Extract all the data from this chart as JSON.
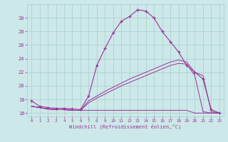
{
  "xlabel": "Windchill (Refroidissement éolien,°C)",
  "bg_color": "#cce8e8",
  "line_color": "#993399",
  "grid_color": "#aacccc",
  "xlim": [
    -0.5,
    23.5
  ],
  "ylim": [
    15.5,
    32.0
  ],
  "xticks": [
    0,
    1,
    2,
    3,
    4,
    5,
    6,
    7,
    8,
    9,
    10,
    11,
    12,
    13,
    14,
    15,
    16,
    17,
    18,
    19,
    20,
    21,
    22,
    23
  ],
  "yticks": [
    16,
    18,
    20,
    22,
    24,
    26,
    28,
    30
  ],
  "line1_x": [
    0,
    1,
    2,
    3,
    4,
    5,
    6,
    7,
    8,
    9,
    10,
    11,
    12,
    13,
    14,
    15,
    16,
    17,
    18,
    19,
    20,
    21,
    22,
    23
  ],
  "line1_y": [
    17.8,
    17.0,
    16.8,
    16.7,
    16.7,
    16.6,
    16.5,
    18.5,
    23.0,
    25.5,
    27.8,
    29.5,
    30.2,
    31.2,
    31.0,
    30.0,
    28.0,
    26.5,
    25.0,
    23.0,
    22.0,
    21.0,
    16.5,
    16.0
  ],
  "line2_x": [
    0,
    1,
    2,
    3,
    4,
    5,
    6,
    7,
    8,
    9,
    10,
    11,
    12,
    13,
    14,
    15,
    16,
    17,
    18,
    19,
    20,
    21,
    22,
    23
  ],
  "line2_y": [
    17.0,
    16.8,
    16.6,
    16.5,
    16.5,
    16.4,
    16.4,
    16.4,
    16.4,
    16.4,
    16.4,
    16.4,
    16.4,
    16.4,
    16.4,
    16.4,
    16.4,
    16.4,
    16.4,
    16.4,
    16.0,
    16.0,
    16.0,
    16.0
  ],
  "line3_x": [
    0,
    1,
    2,
    3,
    4,
    5,
    6,
    7,
    8,
    9,
    10,
    11,
    12,
    13,
    14,
    15,
    16,
    17,
    18,
    19,
    20,
    21,
    22,
    23
  ],
  "line3_y": [
    17.0,
    16.8,
    16.6,
    16.5,
    16.5,
    16.4,
    16.4,
    17.8,
    18.5,
    19.2,
    19.8,
    20.4,
    21.0,
    21.5,
    22.0,
    22.5,
    23.0,
    23.5,
    23.8,
    23.5,
    22.0,
    21.5,
    16.2,
    16.0
  ],
  "line4_x": [
    0,
    1,
    2,
    3,
    4,
    5,
    6,
    7,
    8,
    9,
    10,
    11,
    12,
    13,
    14,
    15,
    16,
    17,
    18,
    19,
    20,
    21,
    22,
    23
  ],
  "line4_y": [
    17.0,
    16.8,
    16.6,
    16.5,
    16.5,
    16.4,
    16.4,
    17.5,
    18.2,
    18.8,
    19.4,
    20.0,
    20.5,
    21.0,
    21.5,
    22.0,
    22.5,
    23.0,
    23.3,
    23.2,
    21.5,
    16.2,
    16.0,
    16.0
  ]
}
